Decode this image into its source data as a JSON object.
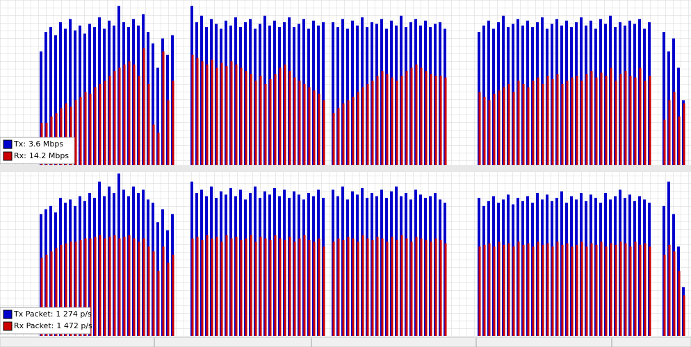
{
  "chart_data": [
    {
      "type": "bar",
      "ylim": [
        0,
        100
      ],
      "series": [
        {
          "name": "Tx:",
          "rate": "3.6 Mbps",
          "color": "#0000cc",
          "values": [
            70,
            82,
            85,
            80,
            88,
            84,
            90,
            83,
            86,
            81,
            87,
            85,
            91,
            84,
            89,
            86,
            98,
            88,
            85,
            90,
            86,
            93,
            82,
            75,
            60,
            78,
            68,
            80,
            null,
            null,
            null,
            98,
            88,
            92,
            85,
            90,
            87,
            84,
            89,
            86,
            91,
            85,
            88,
            90,
            84,
            87,
            92,
            86,
            89,
            85,
            88,
            91,
            85,
            87,
            90,
            84,
            89,
            86,
            88,
            null,
            88,
            85,
            90,
            84,
            89,
            86,
            91,
            85,
            88,
            87,
            90,
            84,
            89,
            86,
            92,
            85,
            88,
            90,
            86,
            89,
            85,
            87,
            88,
            84,
            null,
            null,
            null,
            null,
            null,
            null,
            82,
            86,
            89,
            84,
            88,
            92,
            85,
            87,
            90,
            86,
            89,
            85,
            88,
            91,
            84,
            87,
            90,
            86,
            89,
            85,
            88,
            91,
            86,
            89,
            84,
            90,
            87,
            92,
            85,
            88,
            86,
            89,
            87,
            90,
            84,
            88,
            null,
            null,
            82,
            70,
            78,
            60,
            40
          ]
        },
        {
          "name": "Rx:",
          "rate": "14.2 Mbps",
          "color": "#cc0000",
          "values": [
            26,
            26,
            30,
            32,
            35,
            38,
            36,
            40,
            42,
            45,
            44,
            48,
            50,
            52,
            55,
            58,
            60,
            62,
            64,
            62,
            55,
            72,
            50,
            25,
            20,
            70,
            40,
            52,
            null,
            null,
            null,
            68,
            66,
            64,
            62,
            65,
            60,
            63,
            61,
            64,
            62,
            60,
            58,
            56,
            52,
            55,
            50,
            53,
            56,
            60,
            62,
            58,
            54,
            52,
            50,
            48,
            46,
            44,
            40,
            null,
            32,
            35,
            38,
            40,
            42,
            45,
            48,
            50,
            52,
            55,
            58,
            56,
            54,
            52,
            55,
            58,
            60,
            62,
            60,
            58,
            56,
            55,
            55,
            54,
            null,
            null,
            null,
            null,
            null,
            null,
            45,
            42,
            40,
            44,
            46,
            48,
            50,
            45,
            52,
            50,
            48,
            52,
            54,
            50,
            55,
            53,
            56,
            50,
            52,
            54,
            55,
            52,
            56,
            58,
            54,
            57,
            55,
            60,
            52,
            56,
            58,
            55,
            54,
            60,
            52,
            55,
            null,
            null,
            28,
            40,
            45,
            30,
            38
          ]
        }
      ]
    },
    {
      "type": "bar",
      "ylim": [
        0,
        100
      ],
      "series": [
        {
          "name": "Tx Packet:",
          "rate": "1 274 p/s",
          "color": "#0000cc",
          "values": [
            75,
            78,
            80,
            76,
            85,
            82,
            84,
            80,
            86,
            83,
            88,
            85,
            95,
            86,
            92,
            88,
            100,
            90,
            86,
            92,
            88,
            90,
            84,
            82,
            70,
            78,
            65,
            75,
            null,
            null,
            null,
            95,
            88,
            90,
            86,
            92,
            85,
            89,
            87,
            91,
            86,
            90,
            84,
            88,
            92,
            85,
            89,
            87,
            91,
            86,
            90,
            85,
            89,
            87,
            84,
            88,
            86,
            90,
            85,
            null,
            90,
            86,
            92,
            84,
            89,
            87,
            91,
            85,
            88,
            86,
            90,
            85,
            89,
            92,
            86,
            88,
            84,
            90,
            87,
            85,
            86,
            88,
            84,
            82,
            null,
            null,
            null,
            null,
            null,
            null,
            85,
            80,
            83,
            86,
            82,
            84,
            87,
            81,
            85,
            83,
            86,
            82,
            88,
            84,
            87,
            83,
            85,
            89,
            82,
            86,
            84,
            88,
            83,
            87,
            85,
            82,
            88,
            84,
            86,
            90,
            85,
            87,
            83,
            86,
            84,
            82,
            null,
            null,
            80,
            95,
            75,
            55,
            30
          ]
        },
        {
          "name": "Rx Packet:",
          "rate": "1 472 p/s",
          "color": "#cc0000",
          "values": [
            48,
            50,
            52,
            54,
            56,
            57,
            58,
            58,
            59,
            60,
            60,
            61,
            62,
            60,
            61,
            62,
            60,
            61,
            62,
            60,
            58,
            60,
            55,
            52,
            40,
            55,
            45,
            50,
            null,
            null,
            null,
            60,
            61,
            59,
            62,
            60,
            61,
            58,
            62,
            60,
            61,
            59,
            60,
            62,
            58,
            61,
            60,
            59,
            62,
            60,
            59,
            61,
            58,
            60,
            62,
            59,
            58,
            60,
            55,
            null,
            58,
            60,
            59,
            61,
            60,
            58,
            62,
            60,
            59,
            61,
            60,
            58,
            61,
            59,
            62,
            60,
            58,
            61,
            60,
            59,
            58,
            60,
            59,
            57,
            null,
            null,
            null,
            null,
            null,
            null,
            55,
            56,
            57,
            55,
            58,
            56,
            57,
            55,
            58,
            56,
            57,
            55,
            58,
            56,
            57,
            55,
            58,
            56,
            57,
            55,
            56,
            58,
            55,
            57,
            56,
            58,
            55,
            57,
            56,
            58,
            57,
            55,
            58,
            56,
            57,
            55,
            null,
            null,
            50,
            56,
            52,
            40,
            25
          ]
        }
      ]
    }
  ]
}
